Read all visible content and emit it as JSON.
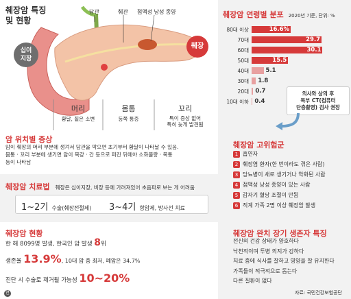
{
  "title": {
    "line1": "췌장암 특징",
    "line2": "및 현황"
  },
  "anatomy": {
    "labels": {
      "bile_duct": "담관",
      "pancreatic_duct": "췌관",
      "ipmn": "점액성 낭성 종양",
      "duodenum": "십이\n지장",
      "pancreas": "췌장"
    },
    "regions": [
      {
        "name": "머리",
        "desc": "황달, 짙은 소변"
      },
      {
        "name": "몸통",
        "desc": "등쪽 통증"
      },
      {
        "name": "꼬리",
        "desc": "특이 증상 없어\n특히 늦게 발견됨"
      }
    ]
  },
  "symptoms": {
    "heading": "암 위치별 증상",
    "lines": [
      "암이 췌장의 머리 부분에 생겨서 담관을 막으면 초기부터 황달이 나타날 수 있음.",
      "몸통 · 꼬리 부분에 생기면 암이 복강 · 간 등으로 퍼진 뒤에야 소화불량 · 복통",
      "등이 나타남"
    ]
  },
  "treatment": {
    "heading": "췌장암 치료법",
    "note": "췌장은 십이지장, 비장 등에 가려져있어 초음파로 보는 게 어려움",
    "items": [
      {
        "range": "1~2기",
        "desc": "수술(췌장전절제)"
      },
      {
        "range": "3~4기",
        "desc": "항암제, 방사선 치료"
      }
    ]
  },
  "status": {
    "heading": "췌장암 현황",
    "line1_prefix": "한 해 8099명 발생, 한국인 암 발생",
    "line1_big": "8",
    "line1_suffix": "위",
    "line2_prefix": "생존율",
    "line2_big": "13.9%",
    "line2_suffix": ", 10대 암 중 최저, 폐암은 34.7%",
    "line3_prefix": "진단 시 수술로 제거될 가능성",
    "line3_big": "10~20%"
  },
  "chart_data": {
    "type": "bar",
    "title": "췌장암 연령별 분포",
    "subtitle": "2020년 기준, 단위: %",
    "categories": [
      "80대 이상",
      "70대",
      "60대",
      "50대",
      "40대",
      "30대",
      "20대",
      "10대 이하"
    ],
    "values": [
      16.6,
      29.7,
      30.1,
      15.5,
      5.1,
      1.8,
      0.7,
      0.4
    ],
    "value_labels": [
      "16.6%",
      "29.7",
      "30.1",
      "15.5",
      "5.1",
      "1.8",
      "0.7",
      "0.4"
    ],
    "xlim": [
      0,
      32
    ],
    "orientation": "horizontal",
    "annotation": "의사와 상의 후\n복부 CT(컴퓨터\n단층촬영) 검사 권장"
  },
  "risk": {
    "heading": "췌장암 고위험군",
    "items": [
      "흡연자",
      "췌장염 환자(한 번이라도 겪은 사람)",
      "당뇨병이 새로 생기거나 악화된 사람",
      "점액성 낭성 종양이 있는 사람",
      "갑자기 혈당 조절이 안됨",
      "직계 가족 2명 이상 췌장암 발생"
    ]
  },
  "survival": {
    "heading": "췌장암 완치 장기 생존자 특징",
    "lines": [
      "전신의 건강 상태가 양호하다",
      "낙천적이며 투병 의지가 강하다",
      "치료 중에 식사를 잘하고 영양을 잘 유지한다",
      "가족들이 적극적으로 돕는다",
      "다른 질환이 없다"
    ],
    "source": "자료: 국민건강보험공단"
  },
  "footer": {
    "logo": "연"
  },
  "colors": {
    "accent": "#d63a3a",
    "bar_dark": "#d63a3a",
    "bar_light": "#e8a0a0",
    "panel": "#f2f2f2"
  }
}
